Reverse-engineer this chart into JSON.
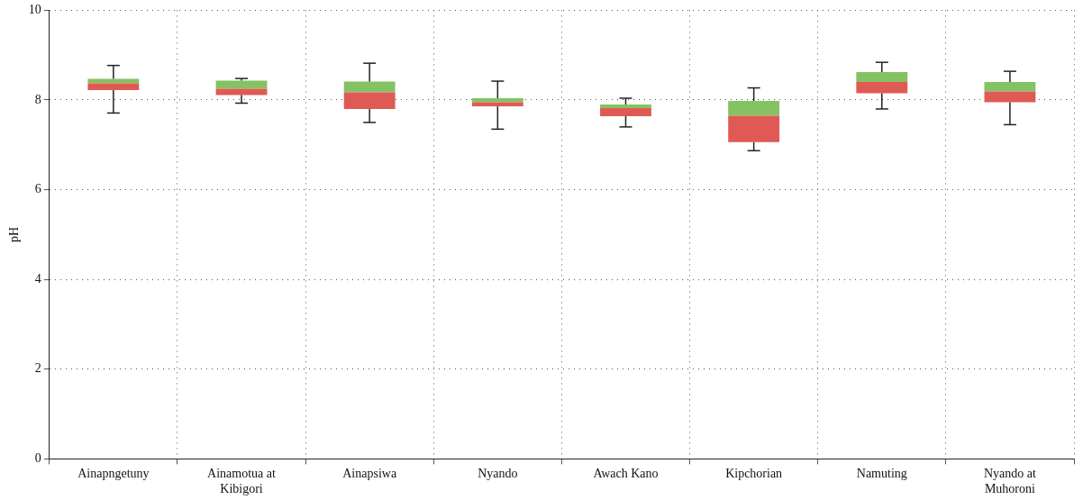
{
  "chart_data": {
    "type": "box",
    "ylabel": "pH",
    "categories": [
      "Ainapngetuny",
      "Ainamotua at Kibigori",
      "Ainapsiwa",
      "Nyando",
      "Awach Kano",
      "Kipchorian",
      "Namuting",
      "Nyando at Muhoroni"
    ],
    "colors": [
      [
        "#e05a55",
        "#84c262"
      ],
      [
        "#e05a55",
        "#84c262"
      ],
      [
        "#e05a55",
        "#84c262"
      ],
      [
        "#e05a55",
        "#84c262"
      ],
      [
        "#e05a55",
        "#84c262"
      ],
      [
        "#e05a55",
        "#84c262"
      ],
      [
        "#e05a55",
        "#84c262"
      ],
      [
        "#e05a55",
        "#84c262"
      ]
    ],
    "boxes": [
      {
        "low": 7.71,
        "q1": 8.22,
        "median": 8.37,
        "q3": 8.47,
        "high": 8.77
      },
      {
        "low": 7.93,
        "q1": 8.11,
        "median": 8.25,
        "q3": 8.43,
        "high": 8.48
      },
      {
        "low": 7.5,
        "q1": 7.8,
        "median": 8.17,
        "q3": 8.41,
        "high": 8.82
      },
      {
        "low": 7.35,
        "q1": 7.86,
        "median": 7.95,
        "q3": 8.04,
        "high": 8.42
      },
      {
        "low": 7.4,
        "q1": 7.64,
        "median": 7.82,
        "q3": 7.9,
        "high": 8.04
      },
      {
        "low": 6.87,
        "q1": 7.06,
        "median": 7.65,
        "q3": 7.98,
        "high": 8.27
      },
      {
        "low": 7.8,
        "q1": 8.15,
        "median": 8.4,
        "q3": 8.62,
        "high": 8.84
      },
      {
        "low": 7.45,
        "q1": 7.95,
        "median": 8.19,
        "q3": 8.4,
        "high": 8.64
      }
    ],
    "ylim": [
      0,
      10
    ],
    "yticks": [
      0,
      2,
      4,
      6,
      8,
      10
    ],
    "grid": true
  }
}
